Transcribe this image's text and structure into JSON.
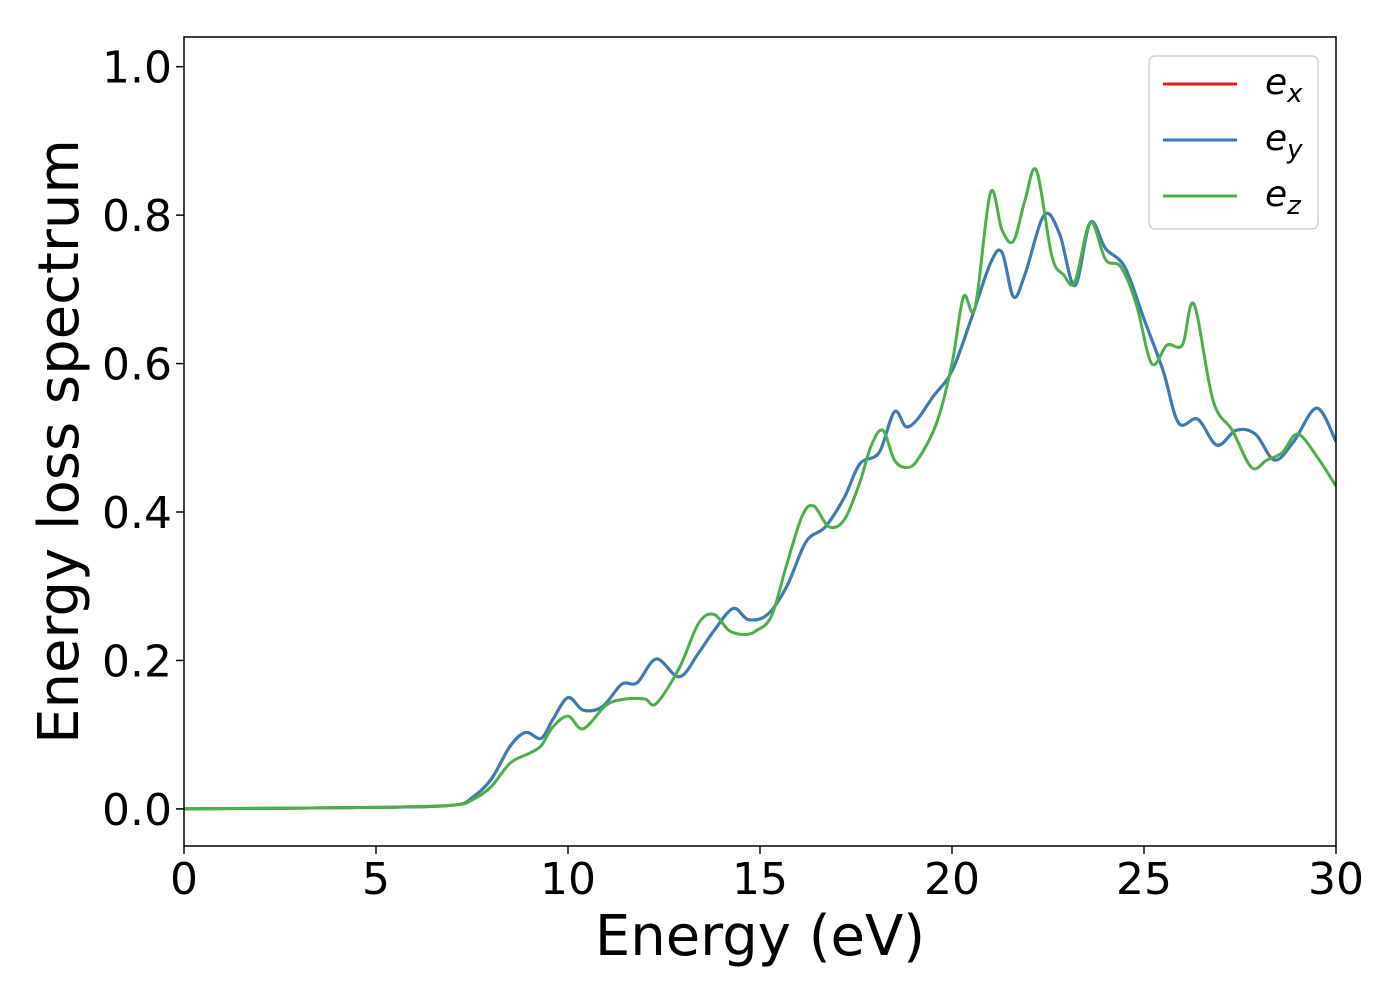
{
  "chart_data": {
    "type": "line",
    "title": "",
    "xlabel": "Energy (eV)",
    "ylabel": "Energy loss spectrum",
    "xlim": [
      0,
      30
    ],
    "ylim": [
      -0.05,
      1.04
    ],
    "xticks": [
      0,
      5,
      10,
      15,
      20,
      25,
      30
    ],
    "xtick_labels": [
      "0",
      "5",
      "10",
      "15",
      "20",
      "25",
      "30"
    ],
    "yticks": [
      0.0,
      0.2,
      0.4,
      0.6,
      0.8,
      1.0
    ],
    "ytick_labels": [
      "0.0",
      "0.2",
      "0.4",
      "0.6",
      "0.8",
      "1.0"
    ],
    "grid": false,
    "legend_position": "top-right",
    "series": [
      {
        "name": "e",
        "subscript": "x",
        "color": "#e41a1c",
        "x": [
          0,
          5,
          7,
          7.5,
          8,
          8.5,
          8.9,
          9.3,
          9.6,
          10,
          10.4,
          10.9,
          11.4,
          11.8,
          12.3,
          12.9,
          13.4,
          13.8,
          14.3,
          14.7,
          15.2,
          15.7,
          16.2,
          16.7,
          17.2,
          17.6,
          18.1,
          18.5,
          18.8,
          19.1,
          19.5,
          20,
          20.5,
          21,
          21.3,
          21.6,
          21.9,
          22.4,
          22.8,
          23.2,
          23.6,
          24,
          24.5,
          25,
          25.5,
          25.9,
          26.4,
          26.9,
          27.4,
          27.9,
          28.4,
          28.9,
          29.5,
          30
        ],
        "y": [
          0.0,
          0.002,
          0.005,
          0.015,
          0.04,
          0.085,
          0.103,
          0.095,
          0.12,
          0.15,
          0.133,
          0.138,
          0.168,
          0.17,
          0.202,
          0.178,
          0.21,
          0.24,
          0.27,
          0.255,
          0.262,
          0.3,
          0.36,
          0.38,
          0.42,
          0.465,
          0.48,
          0.535,
          0.515,
          0.525,
          0.555,
          0.59,
          0.66,
          0.735,
          0.75,
          0.69,
          0.72,
          0.8,
          0.775,
          0.705,
          0.79,
          0.755,
          0.73,
          0.66,
          0.59,
          0.52,
          0.525,
          0.49,
          0.51,
          0.505,
          0.47,
          0.495,
          0.54,
          0.495
        ]
      },
      {
        "name": "e",
        "subscript": "y",
        "color": "#377eb8",
        "x": [
          0,
          5,
          7,
          7.5,
          8,
          8.5,
          8.9,
          9.3,
          9.6,
          10,
          10.4,
          10.9,
          11.4,
          11.8,
          12.3,
          12.9,
          13.4,
          13.8,
          14.3,
          14.7,
          15.2,
          15.7,
          16.2,
          16.7,
          17.2,
          17.6,
          18.1,
          18.5,
          18.8,
          19.1,
          19.5,
          20,
          20.5,
          21,
          21.3,
          21.6,
          21.9,
          22.4,
          22.8,
          23.2,
          23.6,
          24,
          24.5,
          25,
          25.5,
          25.9,
          26.4,
          26.9,
          27.4,
          27.9,
          28.4,
          28.9,
          29.5,
          30
        ],
        "y": [
          0.0,
          0.002,
          0.005,
          0.015,
          0.04,
          0.085,
          0.103,
          0.095,
          0.12,
          0.15,
          0.133,
          0.138,
          0.168,
          0.17,
          0.202,
          0.178,
          0.21,
          0.24,
          0.27,
          0.255,
          0.262,
          0.3,
          0.36,
          0.38,
          0.42,
          0.465,
          0.48,
          0.535,
          0.515,
          0.525,
          0.555,
          0.59,
          0.66,
          0.735,
          0.75,
          0.69,
          0.72,
          0.8,
          0.775,
          0.705,
          0.79,
          0.755,
          0.73,
          0.66,
          0.59,
          0.52,
          0.525,
          0.49,
          0.51,
          0.505,
          0.47,
          0.495,
          0.54,
          0.495
        ]
      },
      {
        "name": "e",
        "subscript": "z",
        "color": "#4daf4a",
        "x": [
          0,
          5,
          7,
          7.5,
          8,
          8.5,
          9,
          9.3,
          9.6,
          10,
          10.4,
          11,
          11.5,
          12,
          12.3,
          12.9,
          13.4,
          13.8,
          14.2,
          14.6,
          14.9,
          15.3,
          15.7,
          16.1,
          16.4,
          16.8,
          17.2,
          17.6,
          17.9,
          18.2,
          18.5,
          18.8,
          19.1,
          19.6,
          20,
          20.3,
          20.6,
          21,
          21.3,
          21.6,
          21.9,
          22.2,
          22.6,
          22.9,
          23.2,
          23.6,
          24,
          24.4,
          24.8,
          25.2,
          25.6,
          26,
          26.3,
          26.8,
          27.3,
          27.8,
          28.2,
          28.6,
          29,
          29.5,
          30
        ],
        "y": [
          0.0,
          0.002,
          0.005,
          0.012,
          0.03,
          0.062,
          0.075,
          0.085,
          0.11,
          0.125,
          0.108,
          0.14,
          0.148,
          0.148,
          0.142,
          0.19,
          0.25,
          0.262,
          0.24,
          0.235,
          0.24,
          0.26,
          0.33,
          0.395,
          0.408,
          0.38,
          0.39,
          0.44,
          0.49,
          0.51,
          0.47,
          0.46,
          0.47,
          0.52,
          0.6,
          0.69,
          0.675,
          0.83,
          0.78,
          0.765,
          0.82,
          0.86,
          0.745,
          0.72,
          0.71,
          0.79,
          0.74,
          0.73,
          0.68,
          0.6,
          0.625,
          0.625,
          0.68,
          0.55,
          0.51,
          0.46,
          0.47,
          0.48,
          0.505,
          0.475,
          0.435
        ]
      }
    ]
  }
}
